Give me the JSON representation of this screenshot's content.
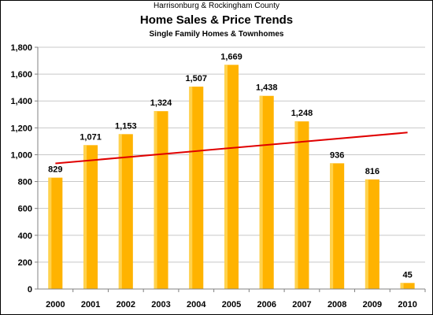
{
  "header": {
    "supertitle": "Harrisonburg & Rockingham County",
    "title": "Home Sales & Price Trends",
    "subtitle": "Single Family Homes & Townhomes"
  },
  "colors": {
    "bar": "#FFB300",
    "bar_highlight": "#FFD24D",
    "trend": "#E00000",
    "grid": "#C8C8C8",
    "axis": "#808080"
  },
  "chart_data": {
    "type": "bar",
    "categories": [
      "2000",
      "2001",
      "2002",
      "2003",
      "2004",
      "2005",
      "2006",
      "2007",
      "2008",
      "2009",
      "2010"
    ],
    "values": [
      829,
      1071,
      1153,
      1324,
      1507,
      1669,
      1438,
      1248,
      936,
      816,
      45
    ],
    "value_labels": [
      "829",
      "1,071",
      "1,153",
      "1,324",
      "1,507",
      "1,669",
      "1,438",
      "1,248",
      "936",
      "816",
      "45"
    ],
    "ylim": [
      0,
      1800
    ],
    "yticks": [
      0,
      200,
      400,
      600,
      800,
      1000,
      1200,
      1400,
      1600,
      1800
    ],
    "ytick_labels": [
      "0",
      "200",
      "400",
      "600",
      "800",
      "1,000",
      "1,200",
      "1,400",
      "1,600",
      "1,800"
    ],
    "grid": true,
    "legend": false,
    "trendline": {
      "start": 935,
      "end": 1165
    }
  }
}
